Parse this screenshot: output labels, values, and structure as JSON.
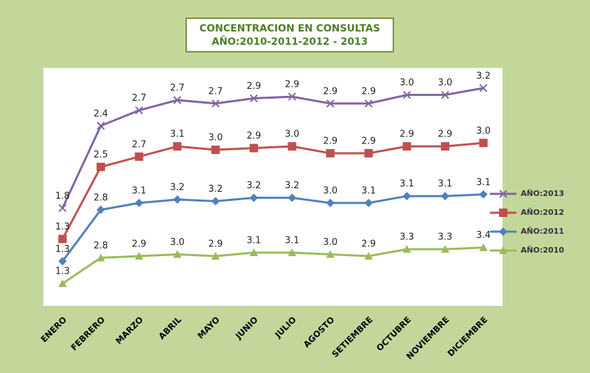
{
  "chart_data": {
    "type": "line",
    "stacked": true,
    "title": [
      "CONCENTRACION EN CONSULTAS",
      "AÑO:2010-2011-2012 - 2013"
    ],
    "categories": [
      "ENERO",
      "FEBRERO",
      "MARZO",
      "ABRIL",
      "MAYO",
      "JUNIO",
      "JULIO",
      "AGOSTO",
      "SETIEMBRE",
      "OCTUBRE",
      "NOVIEMBRE",
      "DICIEMBRE"
    ],
    "legend": "right",
    "series": [
      {
        "name": "AÑO:2013",
        "color": "#8064a2",
        "marker": "x",
        "values": [
          1.8,
          2.4,
          2.7,
          2.7,
          2.7,
          2.9,
          2.9,
          2.9,
          2.9,
          3.0,
          3.0,
          3.2
        ],
        "value_labels": [
          "1.8",
          "2.4",
          "2.7",
          "2.7",
          "2.7",
          "2.9",
          "2.9",
          "2.9",
          "2.9",
          "3.0",
          "3.0",
          "3.2"
        ]
      },
      {
        "name": "AÑO:2012",
        "color": "#c0504d",
        "marker": "square",
        "values": [
          1.3,
          2.5,
          2.7,
          3.1,
          3.0,
          2.9,
          3.0,
          2.9,
          2.9,
          2.9,
          2.9,
          3.0
        ],
        "value_labels": [
          "1.3",
          "2.5",
          "2.7",
          "3.1",
          "3.0",
          "2.9",
          "3.0",
          "2.9",
          "2.9",
          "2.9",
          "2.9",
          "3.0"
        ]
      },
      {
        "name": "AÑO:2011",
        "color": "#4f81bd",
        "marker": "diamond",
        "values": [
          1.3,
          2.8,
          3.1,
          3.2,
          3.2,
          3.2,
          3.2,
          3.0,
          3.1,
          3.1,
          3.1,
          3.1
        ],
        "value_labels": [
          "1.3",
          "2.8",
          "3.1",
          "3.2",
          "3.2",
          "3.2",
          "3.2",
          "3.0",
          "3.1",
          "3.1",
          "3.1",
          "3.1"
        ]
      },
      {
        "name": "AÑO:2010",
        "color": "#9bbb59",
        "marker": "triangle",
        "values": [
          1.3,
          2.8,
          2.9,
          3.0,
          2.9,
          3.1,
          3.1,
          3.0,
          2.9,
          3.3,
          3.3,
          3.4
        ],
        "value_labels": [
          "1.3",
          "2.8",
          "2.9",
          "3.0",
          "2.9",
          "3.1",
          "3.1",
          "3.0",
          "2.9",
          "3.3",
          "3.3",
          "3.4"
        ]
      }
    ]
  }
}
